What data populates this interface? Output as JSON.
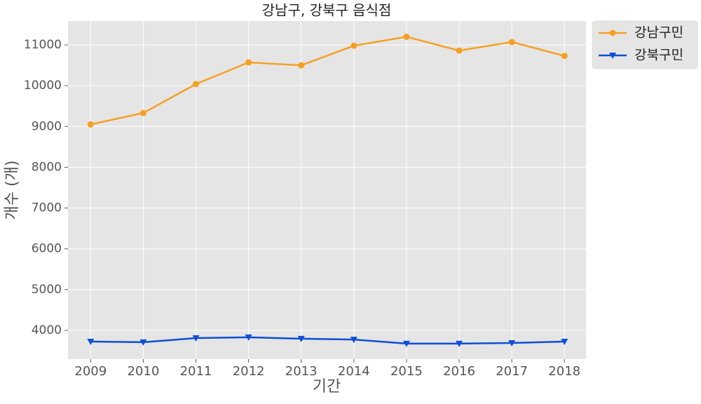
{
  "chart_data": {
    "type": "line",
    "title": "강남구, 강북구 음식점",
    "x_label": "기간",
    "y_label": "개수 (개)",
    "x": [
      2009,
      2010,
      2011,
      2012,
      2013,
      2014,
      2015,
      2016,
      2017,
      2018
    ],
    "series": [
      {
        "name": "강남구민",
        "color": "#f5a023",
        "marker": "circle",
        "values": [
          9050,
          9330,
          10040,
          10570,
          10500,
          10980,
          11200,
          10860,
          11070,
          10730
        ]
      },
      {
        "name": "강북구민",
        "color": "#0e4fd6",
        "marker": "triangle-down",
        "values": [
          3725,
          3710,
          3810,
          3830,
          3795,
          3775,
          3675,
          3675,
          3690,
          3725
        ]
      }
    ],
    "xlim": [
      2008.57,
      2018.41
    ],
    "xticks": [
      2009,
      2010,
      2011,
      2012,
      2013,
      2014,
      2015,
      2016,
      2017,
      2018
    ],
    "ylim": [
      3295,
      11585
    ],
    "yticks": [
      4000,
      5000,
      6000,
      7000,
      8000,
      9000,
      10000,
      11000
    ],
    "grid": true,
    "legend": "outside-upper-right"
  }
}
